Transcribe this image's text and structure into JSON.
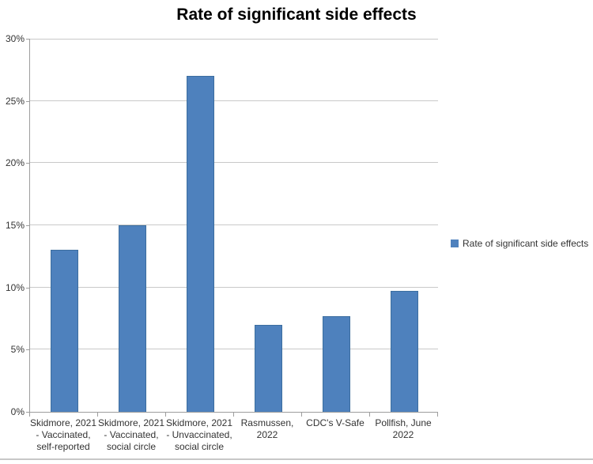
{
  "title": "Rate of significant side effects",
  "legend": {
    "label": "Rate of significant side effects",
    "marker_color": "#4e81bd",
    "position": "right"
  },
  "chart_data": {
    "type": "bar",
    "title": "Rate of significant side effects",
    "categories": [
      "Skidmore, 2021 - Vaccinated, self-reported",
      "Skidmore, 2021 - Vaccinated, social circle",
      "Skidmore, 2021 - Unvaccinated, social circle",
      "Rasmussen, 2022",
      "CDC's V-Safe",
      "Pollfish, June 2022"
    ],
    "category_lines": [
      [
        "Skidmore, 2021",
        "- Vaccinated,",
        "self-reported"
      ],
      [
        "Skidmore, 2021",
        "- Vaccinated,",
        "social circle"
      ],
      [
        "Skidmore, 2021",
        "- Unvaccinated,",
        "social circle"
      ],
      [
        "Rasmussen,",
        "2022"
      ],
      [
        "CDC's V-Safe"
      ],
      [
        "Pollfish, June",
        "2022"
      ]
    ],
    "series": [
      {
        "name": "Rate of significant side effects",
        "values": [
          13,
          15,
          27,
          7,
          7.7,
          9.7
        ]
      }
    ],
    "values": [
      13,
      15,
      27,
      7,
      7.7,
      9.7
    ],
    "xlabel": "",
    "ylabel": "",
    "ylim": [
      0,
      30
    ],
    "yticks": [
      {
        "value": 0,
        "label": "0%"
      },
      {
        "value": 5,
        "label": "5%"
      },
      {
        "value": 10,
        "label": "10%"
      },
      {
        "value": 15,
        "label": "15%"
      },
      {
        "value": 20,
        "label": "20%"
      },
      {
        "value": 25,
        "label": "25%"
      },
      {
        "value": 30,
        "label": "30%"
      }
    ],
    "grid": true,
    "legend_position": "right",
    "bar_color": "#4e81bd",
    "bar_border_color": "#3c6e9f"
  }
}
